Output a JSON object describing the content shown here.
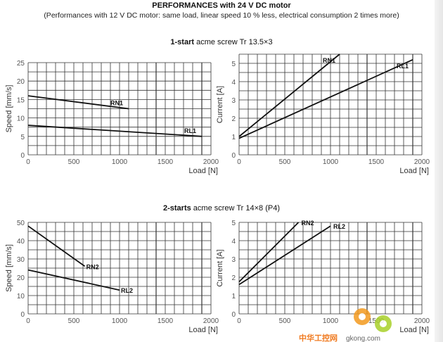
{
  "header": {
    "title": "PERFORMANCES with 24 V  DC motor",
    "subtitle": "(Performances with 12 V DC motor: same load, linear speed 10 % less, electrical consumption 2 times more)"
  },
  "sections": [
    {
      "bold": "1-start",
      "rest": " acme screw  Tr 13.5×3"
    },
    {
      "bold": "2-starts",
      "rest": " acme screw  Tr 14×8 (P4)"
    }
  ],
  "watermark": {
    "text1": "中华工控网",
    "text2": "gkong.com"
  },
  "chart_data": [
    {
      "type": "line",
      "title": "1-start speed",
      "xlabel": "Load [N]",
      "ylabel": "Speed [mm/s]",
      "xlim": [
        0,
        2000
      ],
      "ylim": [
        0,
        25
      ],
      "xticks": [
        0,
        500,
        1000,
        1500,
        2000
      ],
      "yticks": [
        0,
        5,
        10,
        15,
        20,
        25
      ],
      "xgrid_step": 100,
      "ygrid_step": 2.5,
      "grid": true,
      "series": [
        {
          "name": "RN1",
          "x": [
            0,
            1100
          ],
          "y": [
            16,
            12.5
          ]
        },
        {
          "name": "RL1",
          "x": [
            0,
            1900
          ],
          "y": [
            8,
            5
          ]
        }
      ]
    },
    {
      "type": "line",
      "title": "1-start current",
      "xlabel": "Load [N]",
      "ylabel": "Current [A]",
      "xlim": [
        0,
        2000
      ],
      "ylim": [
        0,
        5.5
      ],
      "xticks": [
        0,
        500,
        1000,
        1500,
        2000
      ],
      "yticks": [
        0,
        1,
        2,
        3,
        4,
        5
      ],
      "xgrid_step": 100,
      "ygrid_step": 0.5,
      "grid": true,
      "series": [
        {
          "name": "RN1",
          "x": [
            0,
            1100
          ],
          "y": [
            1,
            5.5
          ]
        },
        {
          "name": "RL1",
          "x": [
            0,
            1900
          ],
          "y": [
            0.9,
            5.2
          ]
        }
      ]
    },
    {
      "type": "line",
      "title": "2-starts speed",
      "xlabel": "Load [N]",
      "ylabel": "Speed [mm/s]",
      "xlim": [
        0,
        2000
      ],
      "ylim": [
        0,
        50
      ],
      "xticks": [
        0,
        500,
        1000,
        1500,
        2000
      ],
      "yticks": [
        0,
        10,
        20,
        30,
        40,
        50
      ],
      "xgrid_step": 100,
      "ygrid_step": 5,
      "grid": true,
      "series": [
        {
          "name": "RN2",
          "x": [
            0,
            620
          ],
          "y": [
            48,
            26
          ]
        },
        {
          "name": "RL2",
          "x": [
            0,
            1000
          ],
          "y": [
            24,
            13
          ]
        }
      ]
    },
    {
      "type": "line",
      "title": "2-starts current",
      "xlabel": "Load [N]",
      "ylabel": "Current [A]",
      "xlim": [
        0,
        2000
      ],
      "ylim": [
        0,
        5
      ],
      "xticks": [
        0,
        500,
        1000,
        1500,
        2000
      ],
      "yticks": [
        0,
        1,
        2,
        3,
        4,
        5
      ],
      "xgrid_step": 100,
      "ygrid_step": 0.5,
      "grid": true,
      "series": [
        {
          "name": "RN2",
          "x": [
            0,
            650
          ],
          "y": [
            1.75,
            5
          ]
        },
        {
          "name": "RL2",
          "x": [
            0,
            1000
          ],
          "y": [
            1.6,
            4.8
          ]
        }
      ]
    }
  ]
}
